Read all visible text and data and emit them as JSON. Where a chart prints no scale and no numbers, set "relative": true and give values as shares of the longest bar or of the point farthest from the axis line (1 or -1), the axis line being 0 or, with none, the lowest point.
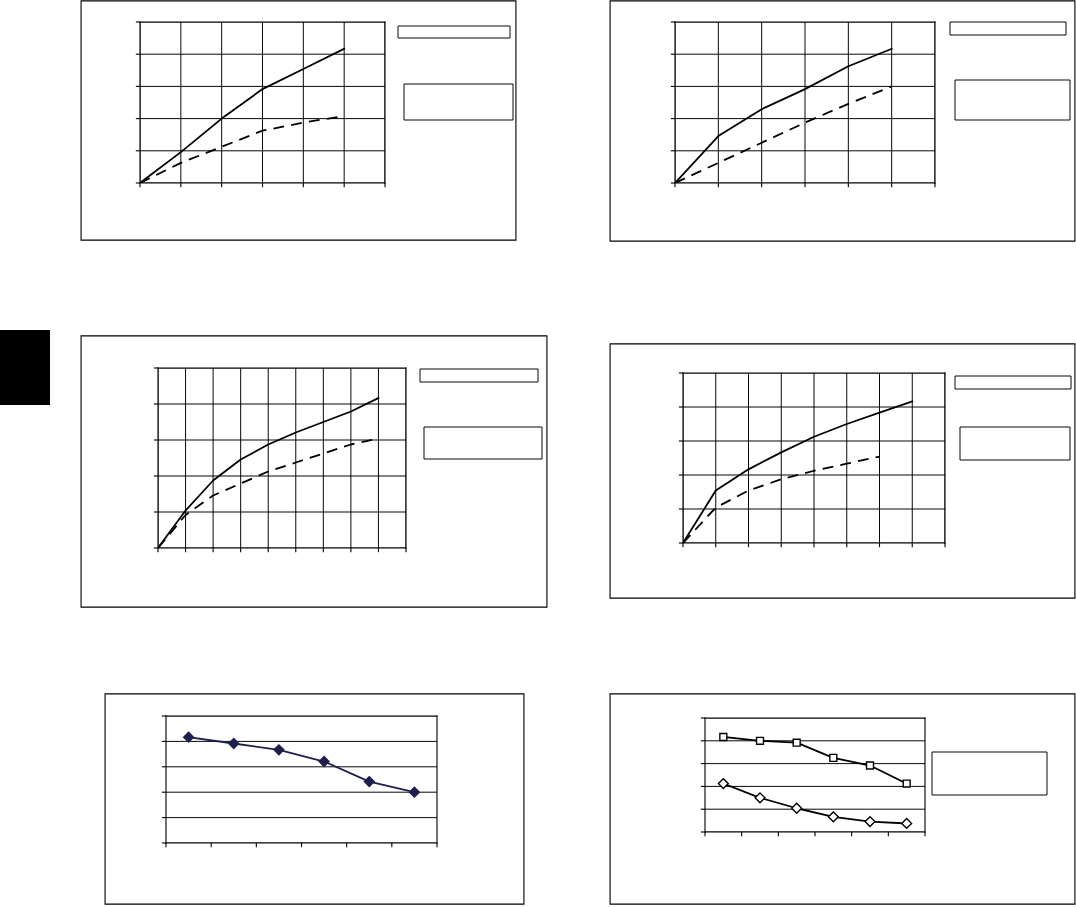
{
  "chart_data": [
    {
      "type": "line",
      "relative": true,
      "grid": true,
      "tick_labels": false,
      "legend": false,
      "categories": [
        null,
        null,
        null,
        null,
        null,
        null,
        null
      ],
      "series": [
        {
          "color": "#000000",
          "line_style": "dashed",
          "values": [
            0,
            0.15,
            0.27,
            0.39,
            0.45,
            0.5,
            null
          ]
        },
        {
          "color": "#000000",
          "line_style": "solid",
          "values": [
            0,
            0.23,
            0.48,
            0.7,
            0.85,
            1,
            null
          ]
        }
      ]
    },
    {
      "type": "line",
      "relative": true,
      "grid": true,
      "tick_labels": false,
      "legend": false,
      "categories": [
        null,
        null,
        null,
        null,
        null,
        null,
        null
      ],
      "series": [
        {
          "color": "#000000",
          "line_style": "dashed",
          "values": [
            0,
            0.15,
            0.3,
            0.45,
            0.59,
            0.72,
            null
          ]
        },
        {
          "color": "#000000",
          "line_style": "solid",
          "values": [
            0,
            0.35,
            0.55,
            0.7,
            0.87,
            1,
            null
          ]
        }
      ]
    },
    {
      "type": "line",
      "relative": true,
      "grid": true,
      "tick_labels": false,
      "legend": false,
      "categories": [
        null,
        null,
        null,
        null,
        null,
        null,
        null,
        null,
        null,
        null
      ],
      "series": [
        {
          "color": "#000000",
          "line_style": "dashed",
          "values": [
            0,
            0.22,
            0.35,
            0.43,
            0.51,
            0.57,
            0.63,
            0.69,
            0.73,
            null
          ]
        },
        {
          "color": "#000000",
          "line_style": "solid",
          "values": [
            0,
            0.25,
            0.45,
            0.59,
            0.69,
            0.77,
            0.84,
            0.91,
            1,
            null
          ]
        }
      ]
    },
    {
      "type": "line",
      "relative": true,
      "grid": true,
      "tick_labels": false,
      "legend": false,
      "categories": [
        null,
        null,
        null,
        null,
        null,
        null,
        null,
        null,
        null
      ],
      "series": [
        {
          "color": "#000000",
          "line_style": "dashed",
          "values": [
            0,
            0.25,
            0.37,
            0.45,
            0.51,
            0.56,
            0.61,
            null,
            null
          ]
        },
        {
          "color": "#000000",
          "line_style": "solid",
          "values": [
            0,
            0.37,
            0.52,
            0.64,
            0.75,
            0.84,
            0.92,
            1,
            null
          ]
        }
      ]
    },
    {
      "type": "line",
      "relative": true,
      "grid": "y",
      "tick_labels": false,
      "legend": false,
      "categories": [
        null,
        null,
        null,
        null,
        null,
        null
      ],
      "series": [
        {
          "color": "#1f1f4f",
          "line_style": "solid",
          "marker": "diamond",
          "values": [
            1,
            0.94,
            0.88,
            0.77,
            0.58,
            0.48
          ]
        }
      ]
    },
    {
      "type": "line",
      "relative": true,
      "grid": "y",
      "tick_labels": false,
      "legend": false,
      "categories": [
        null,
        null,
        null,
        null,
        null,
        null
      ],
      "series": [
        {
          "color": "#000000",
          "line_style": "solid",
          "marker": "diamond",
          "values": [
            0.51,
            0.36,
            0.25,
            0.16,
            0.11,
            0.09
          ]
        },
        {
          "color": "#000000",
          "line_style": "solid",
          "marker": "square",
          "values": [
            1,
            0.96,
            0.94,
            0.78,
            0.7,
            0.51
          ]
        }
      ]
    }
  ]
}
